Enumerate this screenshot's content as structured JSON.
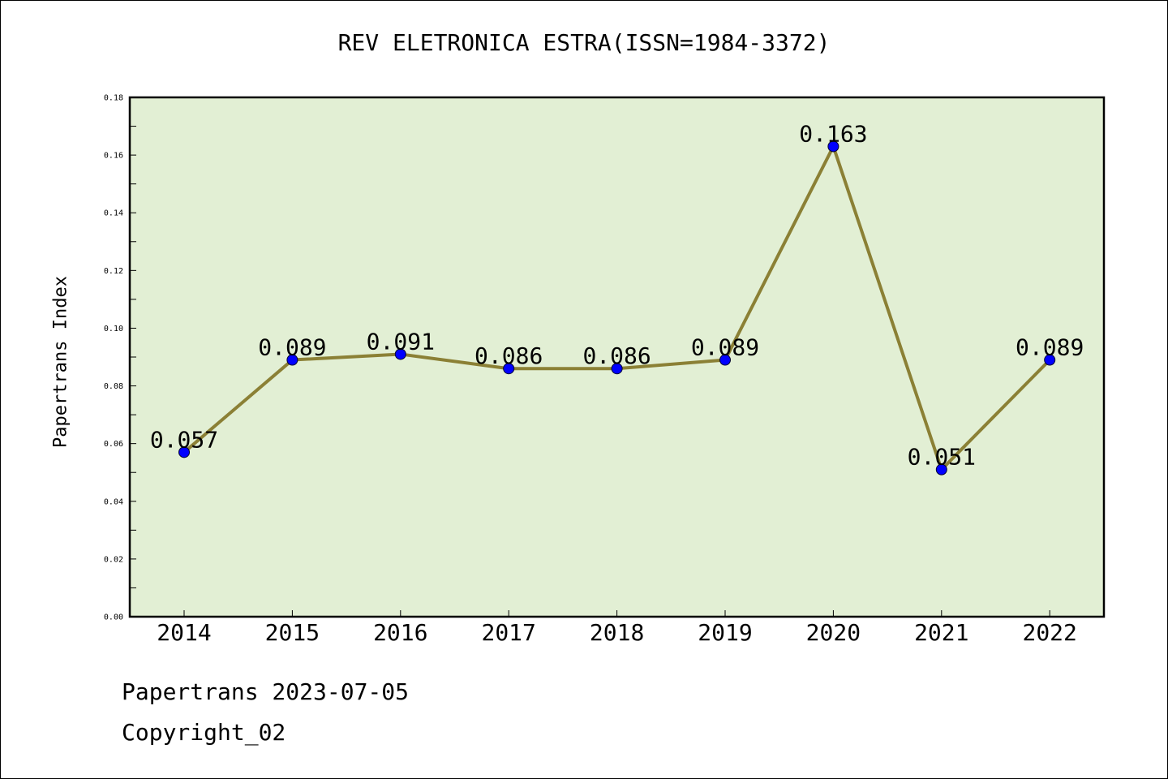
{
  "footer": {
    "date_line": "Papertrans 2023-07-05",
    "copyright": "Copyright_02"
  },
  "chart_data": {
    "type": "line",
    "title": "REV ELETRONICA ESTRA(ISSN=1984-3372)",
    "xlabel": "",
    "ylabel": "Papertrans Index",
    "categories": [
      "2014",
      "2015",
      "2016",
      "2017",
      "2018",
      "2019",
      "2020",
      "2021",
      "2022"
    ],
    "series": [
      {
        "values": [
          0.057,
          0.089,
          0.091,
          0.086,
          0.086,
          0.089,
          0.163,
          0.051,
          0.089
        ],
        "data_labels": [
          "0.057",
          "0.089",
          "0.091",
          "0.086",
          "0.086",
          "0.089",
          "0.163",
          "0.051",
          "0.089"
        ]
      }
    ],
    "ylim": [
      0,
      0.18
    ],
    "y_ticks": [
      "0.00",
      "0.02",
      "0.04",
      "0.06",
      "0.08",
      "0.10",
      "0.12",
      "0.14",
      "0.16",
      "0.18"
    ],
    "grid": false,
    "legend": "none",
    "colors": {
      "plot_background": "#e2efd4",
      "line": "#8b8035",
      "marker": "#0000ff",
      "axes": "#000000"
    }
  }
}
